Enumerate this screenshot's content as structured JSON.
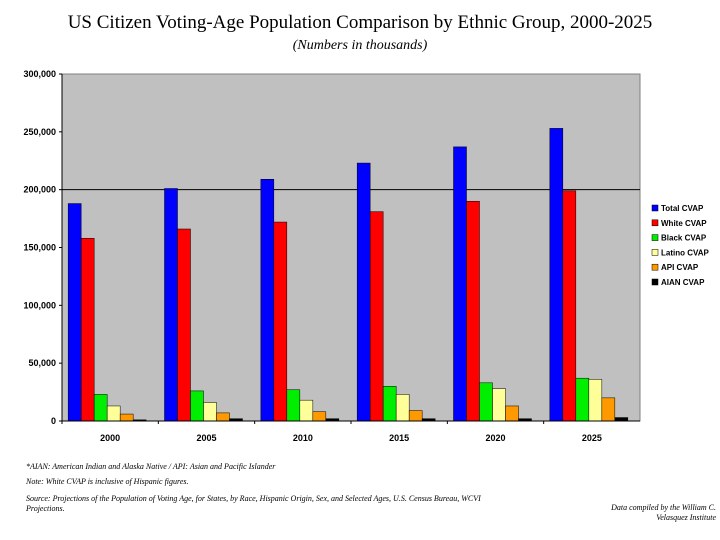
{
  "chart_data": {
    "type": "bar",
    "title": "US Citizen Voting-Age Population Comparison by Ethnic Group, 2000-2025",
    "subtitle": "(Numbers in thousands)",
    "categories": [
      "2000",
      "2005",
      "2010",
      "2015",
      "2020",
      "2025"
    ],
    "ylim": [
      0,
      300000
    ],
    "yticks": [
      0,
      50000,
      100000,
      150000,
      200000,
      250000,
      300000
    ],
    "ytick_labels": [
      "0",
      "50,000",
      "100,000",
      "150,000",
      "200,000",
      "250,000",
      "300,000"
    ],
    "reference_line": 200000,
    "legend_position": "right",
    "series": [
      {
        "name": "Total CVAP",
        "color": "#0000ff",
        "values": [
          188000,
          201000,
          209000,
          223000,
          237000,
          253000
        ]
      },
      {
        "name": "White CVAP",
        "color": "#ff0000",
        "values": [
          158000,
          166000,
          172000,
          181000,
          190000,
          199000
        ]
      },
      {
        "name": "Black CVAP",
        "color": "#00ee00",
        "values": [
          23000,
          26000,
          27000,
          30000,
          33000,
          37000
        ]
      },
      {
        "name": "Latino CVAP",
        "color": "#ffff99",
        "values": [
          13000,
          16000,
          18000,
          23000,
          28000,
          36000
        ]
      },
      {
        "name": "API CVAP",
        "color": "#ff9900",
        "values": [
          6000,
          7000,
          8000,
          9000,
          13000,
          20000
        ]
      },
      {
        "name": "AIAN CVAP",
        "color": "#000000",
        "values": [
          1000,
          2000,
          2000,
          2000,
          2000,
          3000
        ]
      }
    ]
  },
  "notes": {
    "aian": "*AIAN: American Indian and Alaska Native / API: Asian and Pacific Islander",
    "white": "Note: White CVAP is inclusive of Hispanic figures.",
    "source": "Source: Projections of the Population of Voting Age, for States, by Race, Hispanic Origin, Sex, and Selected Ages, U.S. Census Bureau, WCVI Projections.",
    "credit": "Data compiled by the William C. Velasquez Institute"
  }
}
